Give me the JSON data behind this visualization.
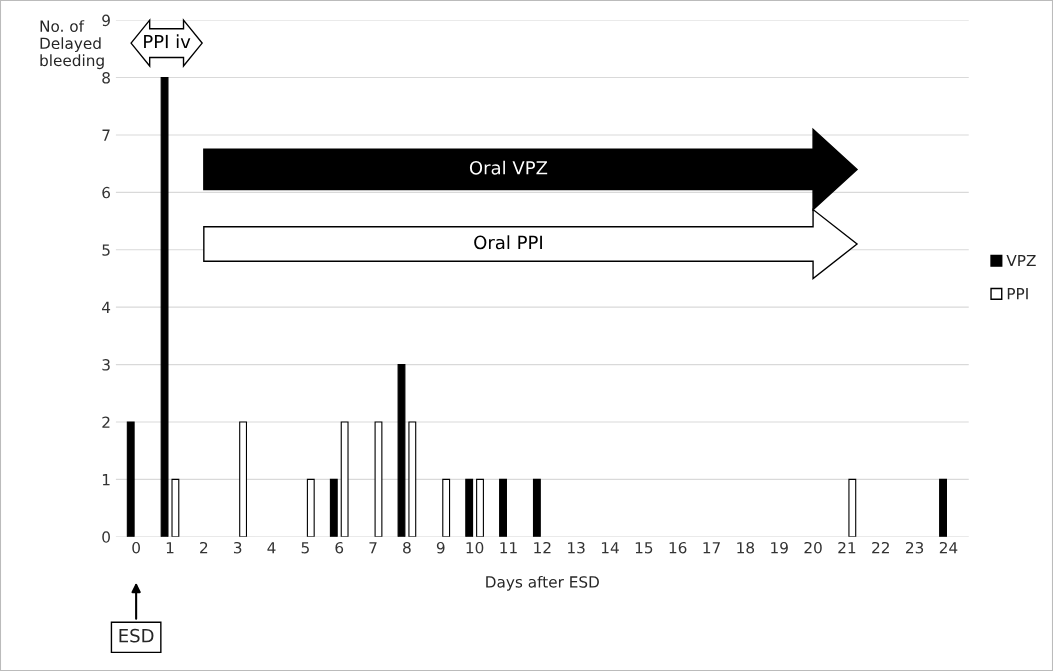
{
  "chart_data": {
    "type": "bar",
    "xlabel": "Days after ESD",
    "ylabel": "No. of\nDelayed\nbleeding",
    "categories": [
      "0",
      "1",
      "2",
      "3",
      "4",
      "5",
      "6",
      "7",
      "8",
      "9",
      "10",
      "11",
      "12",
      "13",
      "14",
      "15",
      "16",
      "17",
      "18",
      "19",
      "20",
      "21",
      "22",
      "23",
      "24"
    ],
    "series": [
      {
        "name": "VPZ",
        "color": "#000000",
        "values": [
          2,
          8,
          0,
          0,
          0,
          0,
          1,
          0,
          3,
          0,
          1,
          1,
          1,
          0,
          0,
          0,
          0,
          0,
          0,
          0,
          0,
          0,
          0,
          0,
          1
        ]
      },
      {
        "name": "PPI",
        "color": "#ffffff",
        "values": [
          0,
          1,
          0,
          2,
          0,
          1,
          2,
          2,
          2,
          1,
          1,
          0,
          0,
          0,
          0,
          0,
          0,
          0,
          0,
          0,
          0,
          1,
          0,
          0,
          0
        ]
      }
    ],
    "ylim": [
      0,
      9
    ],
    "yticks": [
      0,
      1,
      2,
      3,
      4,
      5,
      6,
      7,
      8,
      9
    ],
    "grid": "y",
    "legend": "right",
    "annotations": [
      "PPI iv",
      "Oral VPZ",
      "Oral PPI",
      "ESD"
    ]
  }
}
